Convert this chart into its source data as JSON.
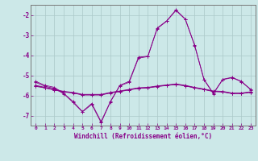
{
  "xlabel": "Windchill (Refroidissement éolien,°C)",
  "background_color": "#cce8e8",
  "grid_color": "#aac8c8",
  "line_color": "#880088",
  "xlim": [
    -0.5,
    23.5
  ],
  "ylim": [
    -7.5,
    -1.5
  ],
  "yticks": [
    -7,
    -6,
    -5,
    -4,
    -3,
    -2
  ],
  "xticks": [
    0,
    1,
    2,
    3,
    4,
    5,
    6,
    7,
    8,
    9,
    10,
    11,
    12,
    13,
    14,
    15,
    16,
    17,
    18,
    19,
    20,
    21,
    22,
    23
  ],
  "series": [
    [
      -5.3,
      -5.5,
      -5.6,
      -5.9,
      -6.3,
      -6.8,
      -6.4,
      -7.3,
      -6.3,
      -5.5,
      -5.3,
      -4.1,
      -4.05,
      -2.65,
      -2.3,
      -1.75,
      -2.2,
      -3.5,
      -5.2,
      -5.9,
      -5.2,
      -5.1,
      -5.3,
      -5.7
    ],
    [
      -5.35,
      -5.55,
      -5.65,
      -5.92,
      -6.35,
      -6.82,
      -6.45,
      -7.35,
      -6.32,
      -5.52,
      -5.35,
      -4.15,
      -4.07,
      -2.68,
      -2.32,
      -1.78,
      -2.22,
      -3.52,
      -5.22,
      -5.92,
      -5.22,
      -5.12,
      -5.32,
      -5.72
    ],
    [
      -5.5,
      -5.6,
      -5.7,
      -5.8,
      -5.85,
      -5.95,
      -5.95,
      -5.95,
      -5.85,
      -5.78,
      -5.7,
      -5.62,
      -5.6,
      -5.53,
      -5.48,
      -5.43,
      -5.5,
      -5.6,
      -5.68,
      -5.78,
      -5.8,
      -5.88,
      -5.88,
      -5.82
    ],
    [
      -5.52,
      -5.62,
      -5.72,
      -5.82,
      -5.87,
      -5.97,
      -5.97,
      -5.97,
      -5.87,
      -5.8,
      -5.72,
      -5.64,
      -5.62,
      -5.55,
      -5.5,
      -5.45,
      -5.52,
      -5.62,
      -5.7,
      -5.8,
      -5.82,
      -5.9,
      -5.9,
      -5.84
    ],
    [
      -5.55,
      -5.63,
      -5.73,
      -5.83,
      -5.88,
      -5.98,
      -5.98,
      -5.98,
      -5.88,
      -5.81,
      -5.73,
      -5.65,
      -5.63,
      -5.56,
      -5.51,
      -5.46,
      -5.53,
      -5.63,
      -5.71,
      -5.81,
      -5.83,
      -5.91,
      -5.91,
      -5.85
    ]
  ]
}
